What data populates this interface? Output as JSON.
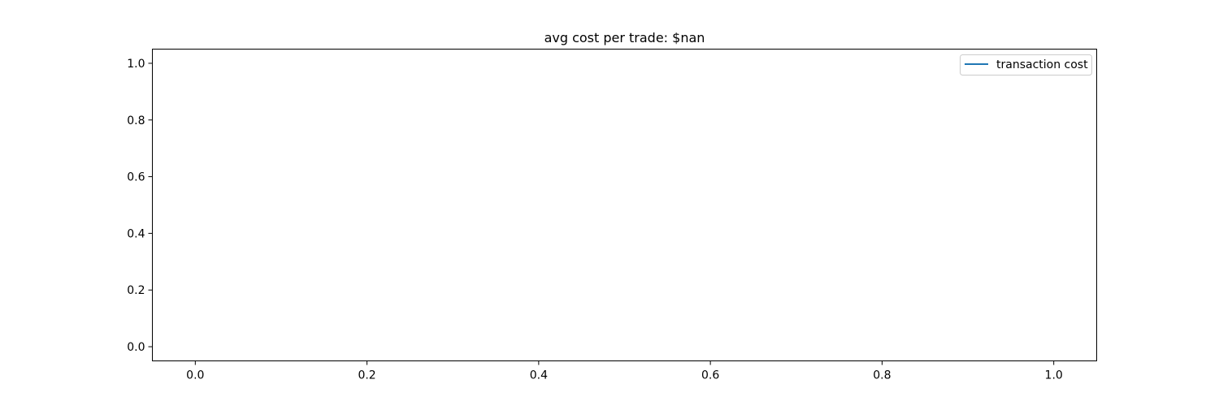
{
  "chart_data": {
    "type": "line",
    "title": "avg cost per trade: $nan",
    "xlabel": "",
    "ylabel": "",
    "xlim": [
      -0.05,
      1.05
    ],
    "ylim": [
      -0.05,
      1.05
    ],
    "xticks": [
      0.0,
      0.2,
      0.4,
      0.6,
      0.8,
      1.0
    ],
    "xtick_labels": [
      "0.0",
      "0.2",
      "0.4",
      "0.6",
      "0.8",
      "1.0"
    ],
    "yticks": [
      0.0,
      0.2,
      0.4,
      0.6,
      0.8,
      1.0
    ],
    "ytick_labels": [
      "0.0",
      "0.2",
      "0.4",
      "0.6",
      "0.8",
      "1.0"
    ],
    "grid": false,
    "legend_position": "top-right",
    "series": [
      {
        "name": "transaction cost",
        "color": "#1f77b4",
        "x": [],
        "y": []
      }
    ]
  }
}
